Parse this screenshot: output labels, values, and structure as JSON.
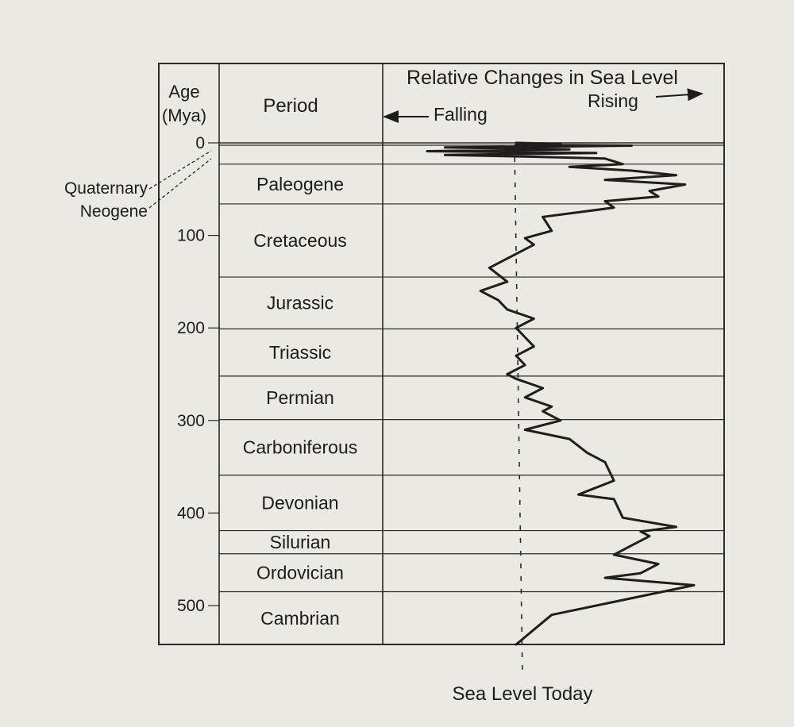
{
  "chart_data": {
    "type": "line",
    "title": "Relative Changes in Sea Level",
    "direction_labels": {
      "left": "Falling",
      "right": "Rising"
    },
    "reference_line_label": "Sea Level Today",
    "header": {
      "age": "Age (Mya)",
      "period": "Period"
    },
    "age_axis": {
      "label": "Age (Mya)",
      "ticks": [
        "0",
        "100",
        "200",
        "300",
        "400",
        "500"
      ],
      "range": [
        0,
        542
      ],
      "inverted": true
    },
    "callouts": [
      "Quaternary",
      "Neogene"
    ],
    "periods": [
      {
        "name": "Quaternary",
        "start": 0,
        "end": 2.6
      },
      {
        "name": "Neogene",
        "start": 2.6,
        "end": 23
      },
      {
        "name": "Paleogene",
        "start": 23,
        "end": 66
      },
      {
        "name": "Cretaceous",
        "start": 66,
        "end": 145
      },
      {
        "name": "Jurassic",
        "start": 145,
        "end": 201
      },
      {
        "name": "Triassic",
        "start": 201,
        "end": 252
      },
      {
        "name": "Permian",
        "start": 252,
        "end": 299
      },
      {
        "name": "Carboniferous",
        "start": 299,
        "end": 359
      },
      {
        "name": "Devonian",
        "start": 359,
        "end": 419
      },
      {
        "name": "Silurian",
        "start": 419,
        "end": 444
      },
      {
        "name": "Ordovician",
        "start": 444,
        "end": 485
      },
      {
        "name": "Cambrian",
        "start": 485,
        "end": 542
      }
    ],
    "x_axis": {
      "range": [
        -1.2,
        2.0
      ],
      "note": "relative sea level; 0 = sea level today"
    },
    "series": [
      {
        "x": [
          0,
          0.5,
          0.0,
          1.3,
          0.4,
          -0.8,
          0.6,
          -1.0,
          0.9,
          -0.8,
          0.2,
          1.0,
          1.2,
          0.6,
          1.3,
          1.8,
          1.0,
          1.9,
          1.5,
          1.6,
          1.0,
          1.1,
          0.3,
          0.4,
          0.1,
          0.2,
          0.0,
          -0.3,
          -0.1,
          -0.4,
          -0.2,
          -0.1,
          0.2,
          0.0,
          0.1,
          0.2,
          0.0,
          0.1,
          -0.1,
          0.0,
          0.3,
          0.1,
          0.4,
          0.3,
          0.5,
          0.1,
          0.6,
          0.8,
          1.0,
          1.1,
          0.7,
          1.1,
          1.2,
          1.8,
          1.4,
          1.5,
          1.3,
          1.1,
          1.6,
          1.4,
          1.0,
          2.0,
          0.4,
          0.0
        ],
        "y": [
          0,
          1,
          2,
          3,
          4,
          5,
          7,
          9,
          11,
          13,
          15,
          17,
          23,
          26,
          30,
          35,
          40,
          45,
          52,
          58,
          63,
          70,
          80,
          95,
          103,
          110,
          120,
          135,
          150,
          160,
          170,
          180,
          190,
          200,
          210,
          220,
          230,
          240,
          250,
          255,
          265,
          275,
          285,
          290,
          300,
          310,
          320,
          335,
          345,
          365,
          380,
          385,
          405,
          415,
          420,
          425,
          435,
          445,
          455,
          465,
          470,
          478,
          510,
          542
        ]
      }
    ]
  }
}
